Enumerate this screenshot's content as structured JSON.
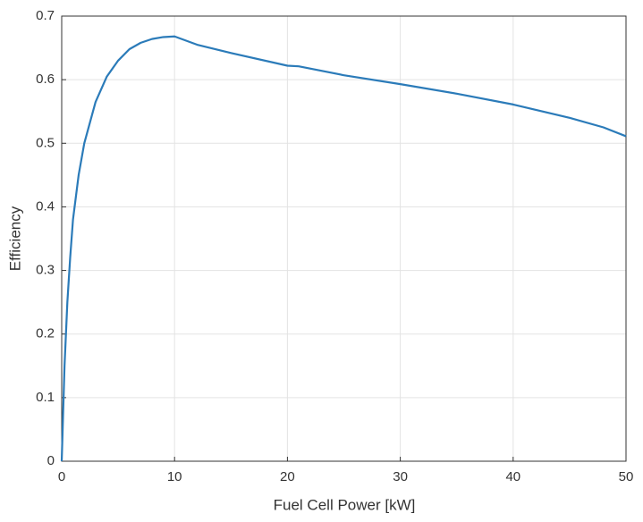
{
  "chart_data": {
    "type": "line",
    "xlabel": "Fuel Cell Power [kW]",
    "ylabel": "Efficiency",
    "x": [
      0,
      0.1,
      0.25,
      0.5,
      0.75,
      1,
      1.5,
      2,
      3,
      4,
      5,
      6,
      7,
      8,
      9,
      10,
      12,
      15,
      20,
      21,
      25,
      30,
      35,
      40,
      45,
      48,
      50
    ],
    "values": [
      0,
      0.06,
      0.15,
      0.25,
      0.32,
      0.38,
      0.45,
      0.5,
      0.565,
      0.605,
      0.63,
      0.648,
      0.658,
      0.664,
      0.667,
      0.668,
      0.655,
      0.642,
      0.622,
      0.621,
      0.607,
      0.593,
      0.578,
      0.561,
      0.54,
      0.525,
      0.511
    ],
    "color": "#2b7bb9",
    "xlim": [
      0,
      50
    ],
    "xticks": [
      0,
      10,
      20,
      30,
      40,
      50
    ],
    "ylim": [
      0,
      0.7
    ],
    "yticks": [
      0,
      0.1,
      0.2,
      0.3,
      0.4,
      0.5,
      0.6,
      0.7
    ],
    "grid": true
  }
}
